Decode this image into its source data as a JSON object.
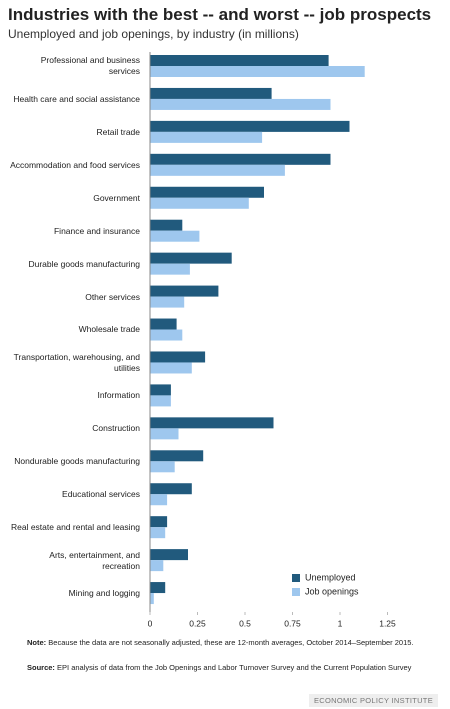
{
  "chart_data": {
    "type": "hbar",
    "title": "Industries with the best -- and worst -- job prospects",
    "subtitle": "Unemployed and job openings, by industry (in millions)",
    "categories": [
      "Professional and business services",
      "Health care and social assistance",
      "Retail trade",
      "Accommodation and food services",
      "Government",
      "Finance and insurance",
      "Durable goods manufacturing",
      "Other services",
      "Wholesale trade",
      "Transportation, warehousing, and utilities",
      "Information",
      "Construction",
      "Nondurable goods manufacturing",
      "Educational services",
      "Real estate and rental and leasing",
      "Arts, entertainment, and recreation",
      "Mining and logging"
    ],
    "series": [
      {
        "name": "Unemployed",
        "color": "#215a7d",
        "values": [
          0.94,
          0.64,
          1.05,
          0.95,
          0.6,
          0.17,
          0.43,
          0.36,
          0.14,
          0.29,
          0.11,
          0.65,
          0.28,
          0.22,
          0.09,
          0.2,
          0.08
        ]
      },
      {
        "name": "Job openings",
        "color": "#9ec7ee",
        "values": [
          1.13,
          0.95,
          0.59,
          0.71,
          0.52,
          0.26,
          0.21,
          0.18,
          0.17,
          0.22,
          0.11,
          0.15,
          0.13,
          0.09,
          0.08,
          0.07,
          0.02
        ]
      }
    ],
    "xlim": [
      0,
      1.4
    ],
    "xticks": [
      0,
      0.25,
      0.5,
      0.75,
      1,
      1.25
    ],
    "grid": false,
    "legend": "lower right",
    "note_label": "Note:",
    "note": "Because the data are not seasonally adjusted, these are 12-month averages, October 2014–September 2015.",
    "source_label": "Source:",
    "source": "EPI analysis of data from the Job Openings and Labor Turnover Survey and the Current Population Survey",
    "credit": "ECONOMIC POLICY INSTITUTE"
  }
}
